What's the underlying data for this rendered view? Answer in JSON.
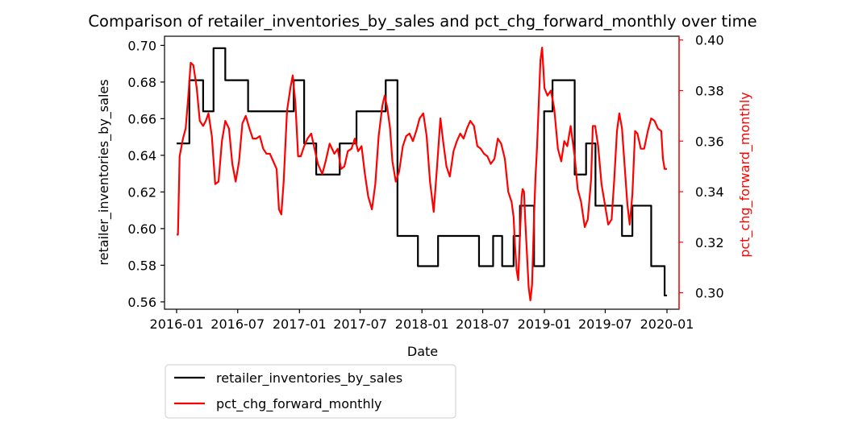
{
  "chart_data": {
    "type": "line",
    "title": "Comparison of retailer_inventories_by_sales and pct_chg_forward_monthly over time",
    "xlabel": "Date",
    "ylabel_left": "retailer_inventories_by_sales",
    "ylabel_right": "pct_chg_forward_monthly",
    "x_tick_labels": [
      "2016-01",
      "2016-07",
      "2017-01",
      "2017-07",
      "2018-01",
      "2018-07",
      "2019-01",
      "2019-07",
      "2020-01"
    ],
    "y_left_ticks": [
      "0.56",
      "0.58",
      "0.60",
      "0.62",
      "0.64",
      "0.66",
      "0.68",
      "0.70"
    ],
    "y_right_ticks": [
      "0.30",
      "0.32",
      "0.34",
      "0.36",
      "0.38",
      "0.40"
    ],
    "ylim_left": [
      0.556,
      0.705
    ],
    "ylim_right": [
      0.2935,
      0.4015
    ],
    "xlim": [
      "2015-11-26",
      "2020-02-06"
    ],
    "grid": false,
    "legend_position": "below-left",
    "colors": {
      "retailer_inventories_by_sales": "#000000",
      "pct_chg_forward_monthly": "#ff0000",
      "right_axis": "#ff0000"
    },
    "series": [
      {
        "name": "retailer_inventories_by_sales",
        "axis": "left",
        "color": "#000000",
        "step": true,
        "points": [
          [
            "2016-01-01",
            0.6465
          ],
          [
            "2016-02-08",
            0.6465
          ],
          [
            "2016-02-08",
            0.681
          ],
          [
            "2016-03-20",
            0.681
          ],
          [
            "2016-03-20",
            0.664
          ],
          [
            "2016-04-20",
            0.664
          ],
          [
            "2016-04-20",
            0.6985
          ],
          [
            "2016-05-25",
            0.6985
          ],
          [
            "2016-05-25",
            0.681
          ],
          [
            "2016-08-01",
            0.681
          ],
          [
            "2016-08-01",
            0.664
          ],
          [
            "2016-12-15",
            0.664
          ],
          [
            "2016-12-15",
            0.681
          ],
          [
            "2017-01-15",
            0.681
          ],
          [
            "2017-01-15",
            0.6465
          ],
          [
            "2017-02-20",
            0.6465
          ],
          [
            "2017-02-20",
            0.6295
          ],
          [
            "2017-05-01",
            0.6295
          ],
          [
            "2017-05-01",
            0.6465
          ],
          [
            "2017-06-20",
            0.6465
          ],
          [
            "2017-06-20",
            0.664
          ],
          [
            "2017-09-15",
            0.664
          ],
          [
            "2017-09-15",
            0.681
          ],
          [
            "2017-10-20",
            0.681
          ],
          [
            "2017-10-20",
            0.596
          ],
          [
            "2017-12-20",
            0.596
          ],
          [
            "2017-12-20",
            0.5795
          ],
          [
            "2018-02-18",
            0.5795
          ],
          [
            "2018-02-18",
            0.596
          ],
          [
            "2018-06-20",
            0.596
          ],
          [
            "2018-06-20",
            0.5795
          ],
          [
            "2018-08-01",
            0.5795
          ],
          [
            "2018-08-01",
            0.596
          ],
          [
            "2018-08-28",
            0.596
          ],
          [
            "2018-08-28",
            0.5795
          ],
          [
            "2018-10-01",
            0.5795
          ],
          [
            "2018-10-01",
            0.596
          ],
          [
            "2018-10-20",
            0.596
          ],
          [
            "2018-10-20",
            0.6125
          ],
          [
            "2018-12-01",
            0.6125
          ],
          [
            "2018-12-01",
            0.5795
          ],
          [
            "2018-12-31",
            0.5795
          ],
          [
            "2018-12-31",
            0.664
          ],
          [
            "2019-01-25",
            0.664
          ],
          [
            "2019-01-25",
            0.681
          ],
          [
            "2019-04-01",
            0.681
          ],
          [
            "2019-04-01",
            0.6295
          ],
          [
            "2019-05-05",
            0.6295
          ],
          [
            "2019-05-05",
            0.6465
          ],
          [
            "2019-06-02",
            0.6465
          ],
          [
            "2019-06-02",
            0.6125
          ],
          [
            "2019-08-20",
            0.6125
          ],
          [
            "2019-08-20",
            0.596
          ],
          [
            "2019-09-20",
            0.596
          ],
          [
            "2019-09-20",
            0.6125
          ],
          [
            "2019-11-15",
            0.6125
          ],
          [
            "2019-11-15",
            0.5795
          ],
          [
            "2019-12-25",
            0.5795
          ],
          [
            "2019-12-25",
            0.5635
          ],
          [
            "2020-01-01",
            0.5635
          ]
        ]
      },
      {
        "name": "pct_chg_forward_monthly",
        "axis": "right",
        "color": "#ff0000",
        "step": false,
        "points": [
          [
            "2016-01-01",
            0.323
          ],
          [
            "2016-01-05",
            0.323
          ],
          [
            "2016-01-10",
            0.354
          ],
          [
            "2016-01-20",
            0.361
          ],
          [
            "2016-01-28",
            0.365
          ],
          [
            "2016-02-05",
            0.378
          ],
          [
            "2016-02-12",
            0.391
          ],
          [
            "2016-02-20",
            0.39
          ],
          [
            "2016-03-01",
            0.381
          ],
          [
            "2016-03-10",
            0.368
          ],
          [
            "2016-03-20",
            0.366
          ],
          [
            "2016-03-28",
            0.368
          ],
          [
            "2016-04-05",
            0.371
          ],
          [
            "2016-04-15",
            0.362
          ],
          [
            "2016-04-25",
            0.343
          ],
          [
            "2016-05-05",
            0.344
          ],
          [
            "2016-05-15",
            0.36
          ],
          [
            "2016-05-25",
            0.368
          ],
          [
            "2016-06-05",
            0.365
          ],
          [
            "2016-06-15",
            0.351
          ],
          [
            "2016-06-25",
            0.344
          ],
          [
            "2016-07-05",
            0.352
          ],
          [
            "2016-07-15",
            0.367
          ],
          [
            "2016-07-25",
            0.37
          ],
          [
            "2016-08-05",
            0.365
          ],
          [
            "2016-08-15",
            0.361
          ],
          [
            "2016-08-25",
            0.361
          ],
          [
            "2016-09-05",
            0.362
          ],
          [
            "2016-09-15",
            0.357
          ],
          [
            "2016-09-25",
            0.355
          ],
          [
            "2016-10-05",
            0.355
          ],
          [
            "2016-10-15",
            0.352
          ],
          [
            "2016-10-25",
            0.349
          ],
          [
            "2016-11-01",
            0.333
          ],
          [
            "2016-11-08",
            0.331
          ],
          [
            "2016-11-15",
            0.344
          ],
          [
            "2016-11-25",
            0.372
          ],
          [
            "2016-12-05",
            0.381
          ],
          [
            "2016-12-12",
            0.386
          ],
          [
            "2016-12-20",
            0.375
          ],
          [
            "2016-12-28",
            0.354
          ],
          [
            "2017-01-05",
            0.354
          ],
          [
            "2017-01-15",
            0.358
          ],
          [
            "2017-01-25",
            0.361
          ],
          [
            "2017-02-05",
            0.363
          ],
          [
            "2017-02-15",
            0.357
          ],
          [
            "2017-02-25",
            0.351
          ],
          [
            "2017-03-10",
            0.347
          ],
          [
            "2017-03-20",
            0.352
          ],
          [
            "2017-04-01",
            0.359
          ],
          [
            "2017-04-15",
            0.355
          ],
          [
            "2017-04-25",
            0.357
          ],
          [
            "2017-05-05",
            0.349
          ],
          [
            "2017-05-15",
            0.35
          ],
          [
            "2017-05-25",
            0.356
          ],
          [
            "2017-06-05",
            0.357
          ],
          [
            "2017-06-15",
            0.361
          ],
          [
            "2017-06-25",
            0.356
          ],
          [
            "2017-07-05",
            0.358
          ],
          [
            "2017-07-15",
            0.347
          ],
          [
            "2017-07-25",
            0.338
          ],
          [
            "2017-08-05",
            0.333
          ],
          [
            "2017-08-15",
            0.343
          ],
          [
            "2017-08-25",
            0.362
          ],
          [
            "2017-09-05",
            0.374
          ],
          [
            "2017-09-12",
            0.378
          ],
          [
            "2017-09-20",
            0.373
          ],
          [
            "2017-09-28",
            0.365
          ],
          [
            "2017-10-05",
            0.352
          ],
          [
            "2017-10-15",
            0.344
          ],
          [
            "2017-10-25",
            0.348
          ],
          [
            "2017-11-05",
            0.358
          ],
          [
            "2017-11-15",
            0.362
          ],
          [
            "2017-11-25",
            0.363
          ],
          [
            "2017-12-05",
            0.36
          ],
          [
            "2017-12-15",
            0.364
          ],
          [
            "2017-12-25",
            0.369
          ],
          [
            "2018-01-05",
            0.371
          ],
          [
            "2018-01-15",
            0.362
          ],
          [
            "2018-01-25",
            0.344
          ],
          [
            "2018-02-05",
            0.332
          ],
          [
            "2018-02-15",
            0.35
          ],
          [
            "2018-02-25",
            0.369
          ],
          [
            "2018-03-05",
            0.36
          ],
          [
            "2018-03-15",
            0.35
          ],
          [
            "2018-03-25",
            0.346
          ],
          [
            "2018-04-05",
            0.356
          ],
          [
            "2018-04-15",
            0.36
          ],
          [
            "2018-04-25",
            0.363
          ],
          [
            "2018-05-05",
            0.361
          ],
          [
            "2018-05-15",
            0.365
          ],
          [
            "2018-05-25",
            0.368
          ],
          [
            "2018-06-05",
            0.366
          ],
          [
            "2018-06-15",
            0.358
          ],
          [
            "2018-06-25",
            0.357
          ],
          [
            "2018-07-05",
            0.355
          ],
          [
            "2018-07-15",
            0.354
          ],
          [
            "2018-07-25",
            0.351
          ],
          [
            "2018-08-05",
            0.353
          ],
          [
            "2018-08-15",
            0.361
          ],
          [
            "2018-08-25",
            0.359
          ],
          [
            "2018-09-05",
            0.353
          ],
          [
            "2018-09-15",
            0.34
          ],
          [
            "2018-09-25",
            0.336
          ],
          [
            "2018-10-01",
            0.33
          ],
          [
            "2018-10-05",
            0.319
          ],
          [
            "2018-10-10",
            0.309
          ],
          [
            "2018-10-15",
            0.305
          ],
          [
            "2018-10-20",
            0.323
          ],
          [
            "2018-10-25",
            0.338
          ],
          [
            "2018-10-28",
            0.341
          ],
          [
            "2018-11-01",
            0.34
          ],
          [
            "2018-11-05",
            0.328
          ],
          [
            "2018-11-10",
            0.315
          ],
          [
            "2018-11-15",
            0.302
          ],
          [
            "2018-11-20",
            0.297
          ],
          [
            "2018-11-25",
            0.303
          ],
          [
            "2018-12-01",
            0.33
          ],
          [
            "2018-12-05",
            0.345
          ],
          [
            "2018-12-10",
            0.358
          ],
          [
            "2018-12-15",
            0.375
          ],
          [
            "2018-12-20",
            0.392
          ],
          [
            "2018-12-25",
            0.397
          ],
          [
            "2019-01-01",
            0.381
          ],
          [
            "2019-01-10",
            0.378
          ],
          [
            "2019-01-20",
            0.38
          ],
          [
            "2019-01-30",
            0.373
          ],
          [
            "2019-02-10",
            0.357
          ],
          [
            "2019-02-20",
            0.352
          ],
          [
            "2019-03-01",
            0.36
          ],
          [
            "2019-03-10",
            0.358
          ],
          [
            "2019-03-20",
            0.366
          ],
          [
            "2019-04-01",
            0.354
          ],
          [
            "2019-04-10",
            0.341
          ],
          [
            "2019-04-20",
            0.336
          ],
          [
            "2019-05-01",
            0.326
          ],
          [
            "2019-05-10",
            0.329
          ],
          [
            "2019-05-20",
            0.345
          ],
          [
            "2019-05-25",
            0.366
          ],
          [
            "2019-06-01",
            0.366
          ],
          [
            "2019-06-10",
            0.358
          ],
          [
            "2019-06-20",
            0.343
          ],
          [
            "2019-06-30",
            0.335
          ],
          [
            "2019-07-10",
            0.327
          ],
          [
            "2019-07-20",
            0.329
          ],
          [
            "2019-07-28",
            0.345
          ],
          [
            "2019-08-05",
            0.364
          ],
          [
            "2019-08-12",
            0.371
          ],
          [
            "2019-08-20",
            0.365
          ],
          [
            "2019-08-28",
            0.35
          ],
          [
            "2019-09-05",
            0.335
          ],
          [
            "2019-09-12",
            0.327
          ],
          [
            "2019-09-20",
            0.339
          ],
          [
            "2019-09-28",
            0.364
          ],
          [
            "2019-10-05",
            0.363
          ],
          [
            "2019-10-15",
            0.357
          ],
          [
            "2019-10-25",
            0.357
          ],
          [
            "2019-11-05",
            0.364
          ],
          [
            "2019-11-15",
            0.369
          ],
          [
            "2019-11-25",
            0.368
          ],
          [
            "2019-12-05",
            0.365
          ],
          [
            "2019-12-15",
            0.364
          ],
          [
            "2019-12-20",
            0.353
          ],
          [
            "2019-12-25",
            0.349
          ],
          [
            "2020-01-01",
            0.349
          ]
        ]
      }
    ]
  }
}
